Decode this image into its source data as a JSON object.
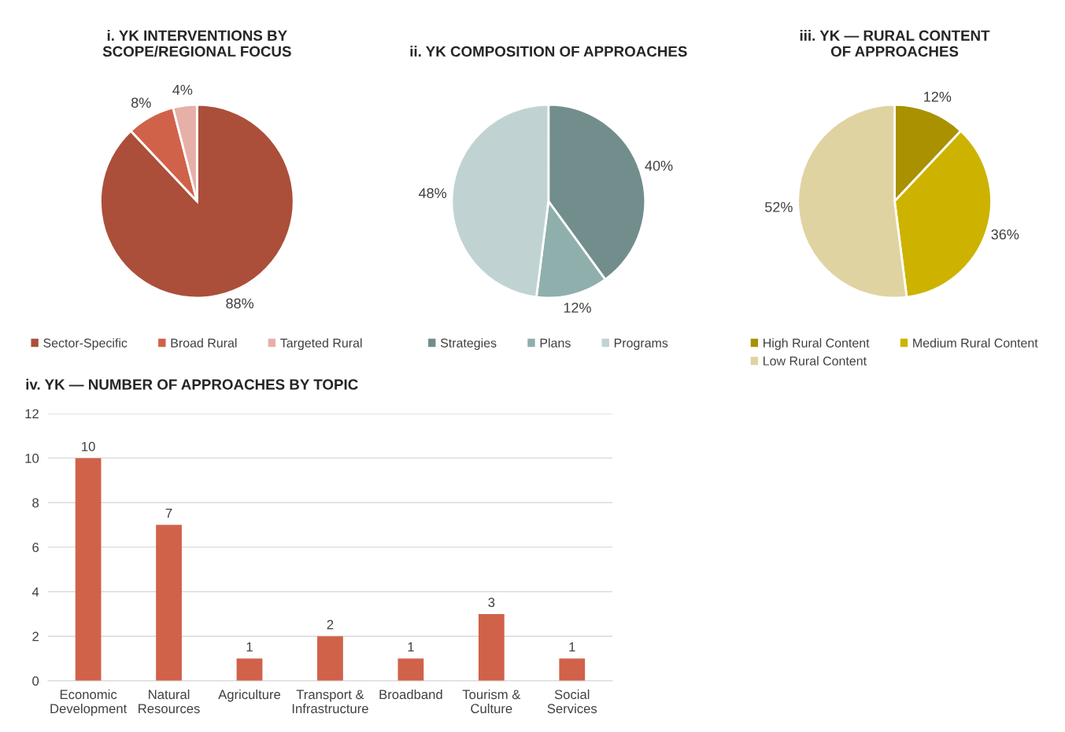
{
  "chart_data": [
    {
      "type": "pie",
      "title": "i. YK INTERVENTIONS BY\nSCOPE/REGIONAL FOCUS",
      "categories": [
        "Sector-Specific",
        "Broad Rural",
        "Targeted Rural"
      ],
      "values": [
        88,
        8,
        4
      ],
      "colors": [
        "#ab4f3a",
        "#d0624a",
        "#e6b0a9"
      ],
      "value_labels": [
        "88%",
        "8%",
        "4%"
      ],
      "legend": "bottom"
    },
    {
      "type": "pie",
      "title": "ii. YK COMPOSITION OF APPROACHES",
      "categories": [
        "Strategies",
        "Plans",
        "Programs"
      ],
      "values": [
        40,
        12,
        48
      ],
      "colors": [
        "#728e8c",
        "#8fafad",
        "#c0d3d2"
      ],
      "value_labels": [
        "40%",
        "12%",
        "48%"
      ],
      "legend": "bottom"
    },
    {
      "type": "pie",
      "title": "iii. YK — RURAL CONTENT\nOF APPROACHES",
      "categories": [
        "High Rural Content",
        "Medium Rural Content",
        "Low Rural Content"
      ],
      "values": [
        12,
        36,
        52
      ],
      "colors": [
        "#a99100",
        "#cdb300",
        "#e0d3a2"
      ],
      "value_labels": [
        "12%",
        "36%",
        "52%"
      ],
      "legend": "bottom"
    },
    {
      "type": "bar",
      "title": "iv. YK — NUMBER OF APPROACHES BY TOPIC",
      "categories": [
        "Economic\nDevelopment",
        "Natural\nResources",
        "Agriculture",
        "Transport &\nInfrastructure",
        "Broadband",
        "Tourism &\nCulture",
        "Social\nServices"
      ],
      "values": [
        10,
        7,
        1,
        2,
        1,
        3,
        1
      ],
      "color": "#d0624a",
      "ylim": [
        0,
        12
      ],
      "yticks": [
        0,
        2,
        4,
        6,
        8,
        10,
        12
      ],
      "grid": "y",
      "data_labels": true
    }
  ]
}
